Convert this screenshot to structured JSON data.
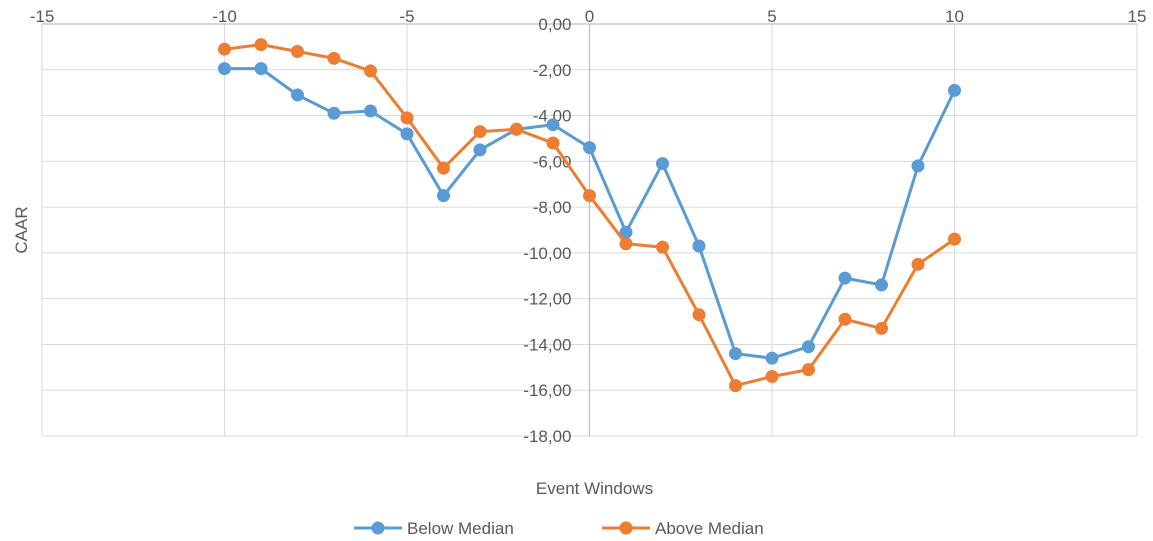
{
  "chart_data": {
    "type": "line",
    "title": "",
    "xlabel": "Event Windows",
    "ylabel": "CAAR",
    "xlim": [
      -15,
      15
    ],
    "ylim": [
      -18,
      0
    ],
    "xticks": [
      -15,
      -10,
      -5,
      0,
      5,
      10,
      15
    ],
    "yticks": [
      0,
      -2,
      -4,
      -6,
      -8,
      -10,
      -12,
      -14,
      -16,
      -18
    ],
    "xtick_labels": [
      "-15",
      "-10",
      "-5",
      "0",
      "5",
      "10",
      "15"
    ],
    "ytick_labels": [
      "0,00",
      "-2,00",
      "-4,00",
      "-6,00",
      "-8,00",
      "-10,00",
      "-12,00",
      "-14,00",
      "-16,00",
      "-18,00"
    ],
    "grid": true,
    "legend_position": "bottom",
    "x": [
      -10,
      -9,
      -8,
      -7,
      -6,
      -5,
      -4,
      -3,
      -2,
      -1,
      0,
      1,
      2,
      3,
      4,
      5,
      6,
      7,
      8,
      9,
      10
    ],
    "series": [
      {
        "name": "Below Median",
        "color": "#5B9BD5",
        "values": [
          -1.95,
          -1.95,
          -3.1,
          -3.9,
          -3.8,
          -4.8,
          -7.5,
          -5.5,
          -4.6,
          -4.4,
          -5.4,
          -9.1,
          -6.1,
          -9.7,
          -14.4,
          -14.6,
          -14.1,
          -11.1,
          -11.4,
          -6.2,
          -2.9
        ]
      },
      {
        "name": "Above Median",
        "color": "#ED7D31",
        "values": [
          -1.1,
          -0.9,
          -1.2,
          -1.5,
          -2.05,
          -4.1,
          -6.3,
          -4.7,
          -4.6,
          -5.2,
          -7.5,
          -9.6,
          -9.75,
          -12.7,
          -15.8,
          -15.4,
          -15.1,
          -12.9,
          -13.3,
          -10.5,
          -9.4
        ]
      }
    ]
  }
}
